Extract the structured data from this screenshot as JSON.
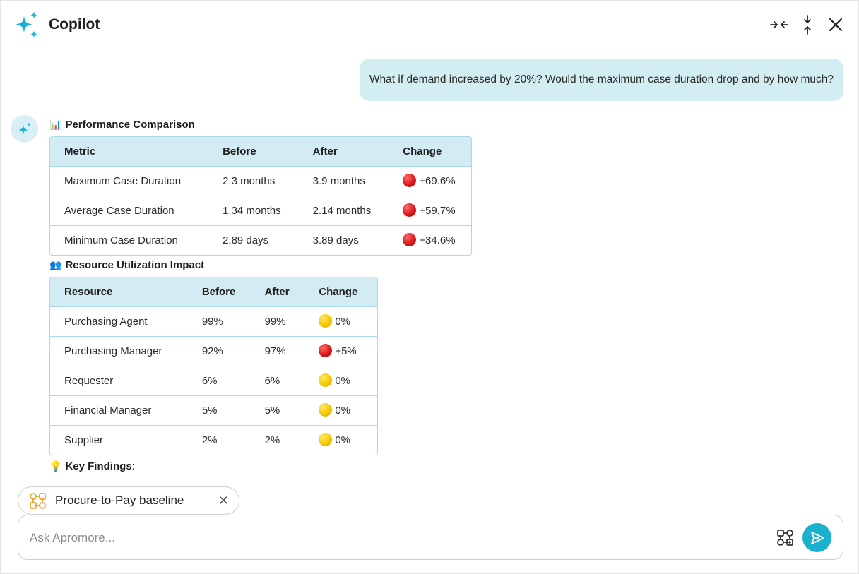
{
  "header": {
    "title": "Copilot",
    "icons": [
      "sparkle-logo-icon",
      "collapse-horizontal-icon",
      "collapse-vertical-icon",
      "close-icon"
    ]
  },
  "user_message": "What if demand increased by 20%? Would the maximum case duration drop and by how much?",
  "performance": {
    "emoji": "📊",
    "title": "Performance Comparison",
    "columns": [
      "Metric",
      "Before",
      "After",
      "Change"
    ],
    "rows": [
      {
        "metric": "Maximum Case Duration",
        "before": "2.3 months",
        "after": "3.9 months",
        "status": "red",
        "change": "+69.6%"
      },
      {
        "metric": "Average Case Duration",
        "before": "1.34 months",
        "after": "2.14 months",
        "status": "red",
        "change": "+59.7%"
      },
      {
        "metric": "Minimum Case Duration",
        "before": "2.89 days",
        "after": "3.89 days",
        "status": "red",
        "change": "+34.6%"
      }
    ]
  },
  "resources": {
    "emoji": "👥",
    "title": "Resource Utilization Impact",
    "columns": [
      "Resource",
      "Before",
      "After",
      "Change"
    ],
    "rows": [
      {
        "resource": "Purchasing Agent",
        "before": "99%",
        "after": "99%",
        "status": "yellow",
        "change": "0%"
      },
      {
        "resource": "Purchasing Manager",
        "before": "92%",
        "after": "97%",
        "status": "red",
        "change": "+5%"
      },
      {
        "resource": "Requester",
        "before": "6%",
        "after": "6%",
        "status": "yellow",
        "change": "0%"
      },
      {
        "resource": "Financial Manager",
        "before": "5%",
        "after": "5%",
        "status": "yellow",
        "change": "0%"
      },
      {
        "resource": "Supplier",
        "before": "2%",
        "after": "2%",
        "status": "yellow",
        "change": "0%"
      }
    ]
  },
  "findings": {
    "emoji": "💡",
    "title": "Key Findings",
    "suffix": ":"
  },
  "context_chip": {
    "label": "Procure-to-Pay baseline",
    "close": "✕"
  },
  "input": {
    "placeholder": "Ask Apromore...",
    "value": ""
  },
  "colors": {
    "accent": "#1bb0cc",
    "bubble": "#d3eef3",
    "table_header": "#d3ecf4",
    "table_border": "#a9dbe6",
    "chip_icon": "#f2a12b"
  }
}
